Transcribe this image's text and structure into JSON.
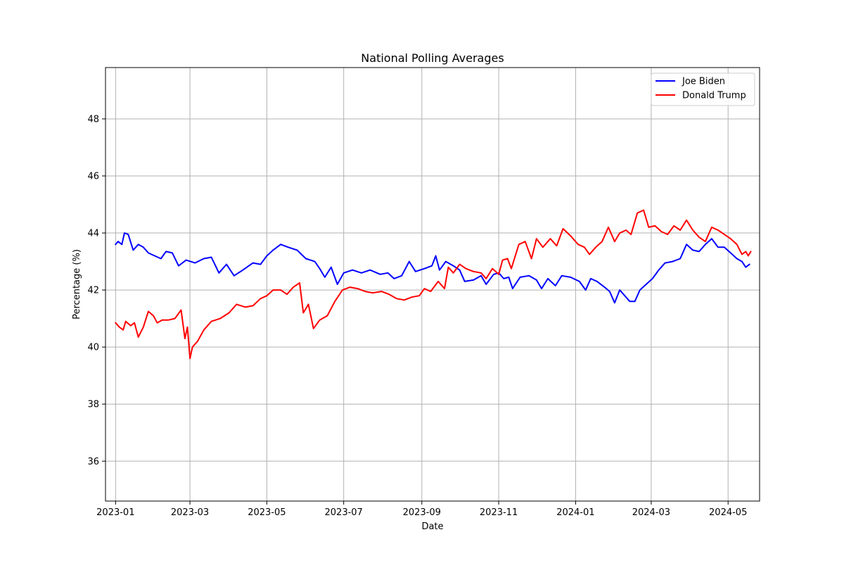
{
  "chart_data": {
    "type": "line",
    "title": "National Polling Averages",
    "xlabel": "Date",
    "ylabel": "Percentage (%)",
    "x_is_date": true,
    "xlim": [
      "2022-12-24",
      "2024-05-26"
    ],
    "ylim": [
      34.6,
      49.8
    ],
    "y_ticks": [
      36,
      38,
      40,
      42,
      44,
      46,
      48
    ],
    "x_ticks": [
      {
        "date": "2023-01-01",
        "label": "2023-01"
      },
      {
        "date": "2023-03-01",
        "label": "2023-03"
      },
      {
        "date": "2023-05-01",
        "label": "2023-05"
      },
      {
        "date": "2023-07-01",
        "label": "2023-07"
      },
      {
        "date": "2023-09-01",
        "label": "2023-09"
      },
      {
        "date": "2023-11-01",
        "label": "2023-11"
      },
      {
        "date": "2024-01-01",
        "label": "2024-01"
      },
      {
        "date": "2024-03-01",
        "label": "2024-03"
      },
      {
        "date": "2024-05-01",
        "label": "2024-05"
      }
    ],
    "grid": true,
    "legend_position": "top-right",
    "series": [
      {
        "name": "Joe Biden",
        "color": "#0000ff",
        "points": [
          [
            "2023-01-01",
            43.6
          ],
          [
            "2023-01-03",
            43.7
          ],
          [
            "2023-01-06",
            43.6
          ],
          [
            "2023-01-08",
            44.0
          ],
          [
            "2023-01-11",
            43.95
          ],
          [
            "2023-01-15",
            43.4
          ],
          [
            "2023-01-19",
            43.6
          ],
          [
            "2023-01-23",
            43.5
          ],
          [
            "2023-01-27",
            43.3
          ],
          [
            "2023-02-01",
            43.2
          ],
          [
            "2023-02-06",
            43.1
          ],
          [
            "2023-02-10",
            43.35
          ],
          [
            "2023-02-15",
            43.3
          ],
          [
            "2023-02-20",
            42.85
          ],
          [
            "2023-02-26",
            43.05
          ],
          [
            "2023-03-05",
            42.95
          ],
          [
            "2023-03-12",
            43.1
          ],
          [
            "2023-03-18",
            43.15
          ],
          [
            "2023-03-24",
            42.6
          ],
          [
            "2023-03-30",
            42.9
          ],
          [
            "2023-04-05",
            42.5
          ],
          [
            "2023-04-12",
            42.7
          ],
          [
            "2023-04-20",
            42.95
          ],
          [
            "2023-04-26",
            42.9
          ],
          [
            "2023-05-01",
            43.2
          ],
          [
            "2023-05-06",
            43.4
          ],
          [
            "2023-05-12",
            43.6
          ],
          [
            "2023-05-18",
            43.5
          ],
          [
            "2023-05-25",
            43.4
          ],
          [
            "2023-06-01",
            43.1
          ],
          [
            "2023-06-08",
            43.0
          ],
          [
            "2023-06-12",
            42.75
          ],
          [
            "2023-06-16",
            42.45
          ],
          [
            "2023-06-21",
            42.8
          ],
          [
            "2023-06-26",
            42.2
          ],
          [
            "2023-07-01",
            42.6
          ],
          [
            "2023-07-08",
            42.7
          ],
          [
            "2023-07-15",
            42.6
          ],
          [
            "2023-07-22",
            42.7
          ],
          [
            "2023-07-30",
            42.55
          ],
          [
            "2023-08-05",
            42.6
          ],
          [
            "2023-08-10",
            42.4
          ],
          [
            "2023-08-16",
            42.5
          ],
          [
            "2023-08-22",
            43.0
          ],
          [
            "2023-08-27",
            42.65
          ],
          [
            "2023-09-03",
            42.75
          ],
          [
            "2023-09-09",
            42.85
          ],
          [
            "2023-09-12",
            43.2
          ],
          [
            "2023-09-15",
            42.7
          ],
          [
            "2023-09-20",
            43.0
          ],
          [
            "2023-09-26",
            42.85
          ],
          [
            "2023-10-01",
            42.7
          ],
          [
            "2023-10-05",
            42.3
          ],
          [
            "2023-10-12",
            42.35
          ],
          [
            "2023-10-18",
            42.5
          ],
          [
            "2023-10-22",
            42.2
          ],
          [
            "2023-10-28",
            42.55
          ],
          [
            "2023-11-01",
            42.6
          ],
          [
            "2023-11-05",
            42.4
          ],
          [
            "2023-11-09",
            42.45
          ],
          [
            "2023-11-12",
            42.05
          ],
          [
            "2023-11-18",
            42.45
          ],
          [
            "2023-11-25",
            42.5
          ],
          [
            "2023-12-01",
            42.35
          ],
          [
            "2023-12-05",
            42.05
          ],
          [
            "2023-12-10",
            42.4
          ],
          [
            "2023-12-16",
            42.15
          ],
          [
            "2023-12-21",
            42.5
          ],
          [
            "2023-12-28",
            42.45
          ],
          [
            "2024-01-04",
            42.3
          ],
          [
            "2024-01-09",
            42.0
          ],
          [
            "2024-01-13",
            42.4
          ],
          [
            "2024-01-18",
            42.3
          ],
          [
            "2024-01-24",
            42.1
          ],
          [
            "2024-01-28",
            41.95
          ],
          [
            "2024-02-01",
            41.55
          ],
          [
            "2024-02-05",
            42.0
          ],
          [
            "2024-02-09",
            41.8
          ],
          [
            "2024-02-13",
            41.6
          ],
          [
            "2024-02-17",
            41.6
          ],
          [
            "2024-02-21",
            42.0
          ],
          [
            "2024-02-26",
            42.2
          ],
          [
            "2024-03-02",
            42.4
          ],
          [
            "2024-03-07",
            42.7
          ],
          [
            "2024-03-12",
            42.95
          ],
          [
            "2024-03-18",
            43.0
          ],
          [
            "2024-03-24",
            43.1
          ],
          [
            "2024-03-29",
            43.6
          ],
          [
            "2024-04-03",
            43.4
          ],
          [
            "2024-04-08",
            43.35
          ],
          [
            "2024-04-13",
            43.6
          ],
          [
            "2024-04-18",
            43.8
          ],
          [
            "2024-04-23",
            43.5
          ],
          [
            "2024-04-28",
            43.5
          ],
          [
            "2024-05-03",
            43.3
          ],
          [
            "2024-05-08",
            43.1
          ],
          [
            "2024-05-12",
            43.0
          ],
          [
            "2024-05-15",
            42.8
          ],
          [
            "2024-05-18",
            42.9
          ]
        ]
      },
      {
        "name": "Donald Trump",
        "color": "#ff0000",
        "points": [
          [
            "2023-01-01",
            40.85
          ],
          [
            "2023-01-04",
            40.7
          ],
          [
            "2023-01-07",
            40.6
          ],
          [
            "2023-01-09",
            40.9
          ],
          [
            "2023-01-13",
            40.75
          ],
          [
            "2023-01-16",
            40.85
          ],
          [
            "2023-01-19",
            40.35
          ],
          [
            "2023-01-23",
            40.7
          ],
          [
            "2023-01-27",
            41.25
          ],
          [
            "2023-01-31",
            41.1
          ],
          [
            "2023-02-03",
            40.85
          ],
          [
            "2023-02-07",
            40.95
          ],
          [
            "2023-02-12",
            40.95
          ],
          [
            "2023-02-17",
            41.0
          ],
          [
            "2023-02-22",
            41.3
          ],
          [
            "2023-02-25",
            40.3
          ],
          [
            "2023-02-27",
            40.7
          ],
          [
            "2023-03-01",
            39.6
          ],
          [
            "2023-03-03",
            40.0
          ],
          [
            "2023-03-07",
            40.2
          ],
          [
            "2023-03-12",
            40.6
          ],
          [
            "2023-03-18",
            40.9
          ],
          [
            "2023-03-25",
            41.0
          ],
          [
            "2023-04-01",
            41.2
          ],
          [
            "2023-04-07",
            41.5
          ],
          [
            "2023-04-14",
            41.4
          ],
          [
            "2023-04-20",
            41.45
          ],
          [
            "2023-04-26",
            41.7
          ],
          [
            "2023-05-01",
            41.8
          ],
          [
            "2023-05-06",
            42.0
          ],
          [
            "2023-05-12",
            42.0
          ],
          [
            "2023-05-17",
            41.85
          ],
          [
            "2023-05-22",
            42.1
          ],
          [
            "2023-05-27",
            42.25
          ],
          [
            "2023-05-30",
            41.2
          ],
          [
            "2023-06-03",
            41.5
          ],
          [
            "2023-06-07",
            40.65
          ],
          [
            "2023-06-12",
            40.95
          ],
          [
            "2023-06-18",
            41.1
          ],
          [
            "2023-06-24",
            41.6
          ],
          [
            "2023-06-30",
            42.0
          ],
          [
            "2023-07-06",
            42.1
          ],
          [
            "2023-07-12",
            42.05
          ],
          [
            "2023-07-18",
            41.95
          ],
          [
            "2023-07-24",
            41.9
          ],
          [
            "2023-07-31",
            41.95
          ],
          [
            "2023-08-06",
            41.85
          ],
          [
            "2023-08-12",
            41.7
          ],
          [
            "2023-08-18",
            41.65
          ],
          [
            "2023-08-24",
            41.75
          ],
          [
            "2023-08-30",
            41.8
          ],
          [
            "2023-09-03",
            42.05
          ],
          [
            "2023-09-08",
            41.95
          ],
          [
            "2023-09-14",
            42.3
          ],
          [
            "2023-09-19",
            42.05
          ],
          [
            "2023-09-22",
            42.8
          ],
          [
            "2023-09-26",
            42.6
          ],
          [
            "2023-10-01",
            42.9
          ],
          [
            "2023-10-06",
            42.75
          ],
          [
            "2023-10-12",
            42.65
          ],
          [
            "2023-10-18",
            42.6
          ],
          [
            "2023-10-22",
            42.4
          ],
          [
            "2023-10-27",
            42.75
          ],
          [
            "2023-11-01",
            42.55
          ],
          [
            "2023-11-04",
            43.05
          ],
          [
            "2023-11-08",
            43.1
          ],
          [
            "2023-11-11",
            42.75
          ],
          [
            "2023-11-17",
            43.6
          ],
          [
            "2023-11-22",
            43.7
          ],
          [
            "2023-11-27",
            43.1
          ],
          [
            "2023-12-01",
            43.8
          ],
          [
            "2023-12-06",
            43.5
          ],
          [
            "2023-12-12",
            43.8
          ],
          [
            "2023-12-17",
            43.55
          ],
          [
            "2023-12-22",
            44.15
          ],
          [
            "2023-12-28",
            43.9
          ],
          [
            "2024-01-03",
            43.6
          ],
          [
            "2024-01-08",
            43.5
          ],
          [
            "2024-01-12",
            43.25
          ],
          [
            "2024-01-17",
            43.5
          ],
          [
            "2024-01-22",
            43.7
          ],
          [
            "2024-01-27",
            44.2
          ],
          [
            "2024-02-01",
            43.7
          ],
          [
            "2024-02-05",
            44.0
          ],
          [
            "2024-02-10",
            44.1
          ],
          [
            "2024-02-14",
            43.95
          ],
          [
            "2024-02-19",
            44.7
          ],
          [
            "2024-02-24",
            44.8
          ],
          [
            "2024-02-28",
            44.2
          ],
          [
            "2024-03-04",
            44.25
          ],
          [
            "2024-03-09",
            44.05
          ],
          [
            "2024-03-14",
            43.95
          ],
          [
            "2024-03-19",
            44.25
          ],
          [
            "2024-03-24",
            44.1
          ],
          [
            "2024-03-29",
            44.45
          ],
          [
            "2024-04-03",
            44.1
          ],
          [
            "2024-04-08",
            43.85
          ],
          [
            "2024-04-13",
            43.7
          ],
          [
            "2024-04-18",
            44.2
          ],
          [
            "2024-04-23",
            44.1
          ],
          [
            "2024-04-28",
            43.95
          ],
          [
            "2024-05-03",
            43.8
          ],
          [
            "2024-05-08",
            43.6
          ],
          [
            "2024-05-12",
            43.25
          ],
          [
            "2024-05-15",
            43.35
          ],
          [
            "2024-05-17",
            43.2
          ],
          [
            "2024-05-19",
            43.35
          ]
        ]
      }
    ]
  }
}
